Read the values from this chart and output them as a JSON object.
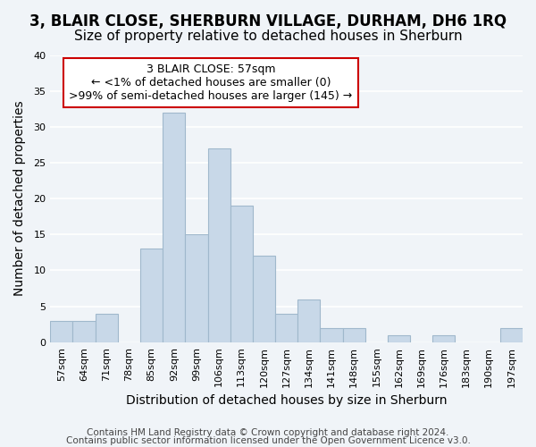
{
  "title": "3, BLAIR CLOSE, SHERBURN VILLAGE, DURHAM, DH6 1RQ",
  "subtitle": "Size of property relative to detached houses in Sherburn",
  "xlabel": "Distribution of detached houses by size in Sherburn",
  "ylabel": "Number of detached properties",
  "footer_lines": [
    "Contains HM Land Registry data © Crown copyright and database right 2024.",
    "Contains public sector information licensed under the Open Government Licence v3.0."
  ],
  "bin_labels": [
    "57sqm",
    "64sqm",
    "71sqm",
    "78sqm",
    "85sqm",
    "92sqm",
    "99sqm",
    "106sqm",
    "113sqm",
    "120sqm",
    "127sqm",
    "134sqm",
    "141sqm",
    "148sqm",
    "155sqm",
    "162sqm",
    "169sqm",
    "176sqm",
    "183sqm",
    "190sqm",
    "197sqm"
  ],
  "bar_heights": [
    3,
    3,
    4,
    0,
    13,
    32,
    15,
    27,
    19,
    12,
    4,
    6,
    2,
    2,
    0,
    1,
    0,
    1,
    0,
    0,
    2
  ],
  "bar_color": "#c8d8e8",
  "bar_edge_color": "#a0b8cc",
  "annotation_line1": "3 BLAIR CLOSE: 57sqm",
  "annotation_line2": "← <1% of detached houses are smaller (0)",
  "annotation_line3": ">99% of semi-detached houses are larger (145) →",
  "annotation_box_edge_color": "#cc0000",
  "annotation_box_face_color": "#ffffff",
  "ylim": [
    0,
    40
  ],
  "yticks": [
    0,
    5,
    10,
    15,
    20,
    25,
    30,
    35,
    40
  ],
  "background_color": "#f0f4f8",
  "grid_color": "#ffffff",
  "title_fontsize": 12,
  "subtitle_fontsize": 11,
  "axis_label_fontsize": 10,
  "tick_fontsize": 8,
  "annotation_fontsize": 9,
  "footer_fontsize": 7.5
}
